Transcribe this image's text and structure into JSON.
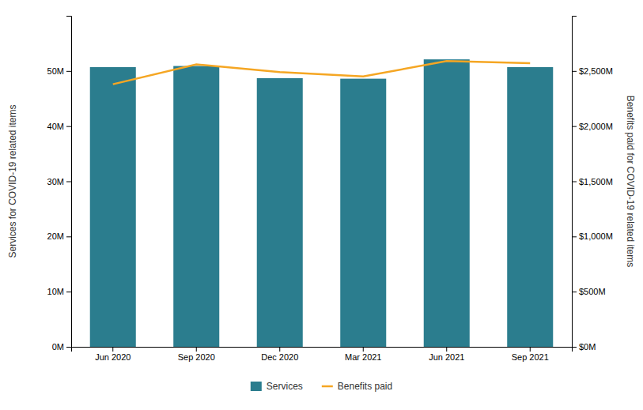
{
  "chart_data": {
    "type": "bar",
    "categories": [
      "Jun 2020",
      "Sep 2020",
      "Dec 2020",
      "Mar 2021",
      "Jun 2021",
      "Sep 2021"
    ],
    "series": [
      {
        "name": "Services",
        "type": "bar",
        "color": "#2B7D8E",
        "values": [
          50700000,
          50900000,
          48700000,
          48600000,
          52100000,
          50700000
        ]
      },
      {
        "name": "Benefits paid",
        "type": "line",
        "axis": "y2",
        "color": "#F5A623",
        "values": [
          2380000000,
          2560000000,
          2490000000,
          2450000000,
          2590000000,
          2570000000
        ]
      }
    ],
    "ylabel": "Services for COVID-19 related items",
    "y2label": "Benefits paid for COVID-19 related items",
    "ylim": [
      0,
      60000000
    ],
    "yticks": [
      {
        "value": 0,
        "label": "0M"
      },
      {
        "value": 10000000,
        "label": "10M"
      },
      {
        "value": 20000000,
        "label": "20M"
      },
      {
        "value": 30000000,
        "label": "30M"
      },
      {
        "value": 40000000,
        "label": "40M"
      },
      {
        "value": 50000000,
        "label": "50M"
      }
    ],
    "y2lim": [
      0,
      3000000000
    ],
    "y2ticks": [
      {
        "value": 0,
        "label": "$0M"
      },
      {
        "value": 500000000,
        "label": "$500M"
      },
      {
        "value": 1000000000,
        "label": "$1,000M"
      },
      {
        "value": 1500000000,
        "label": "$1,500M"
      },
      {
        "value": 2000000000,
        "label": "$2,000M"
      },
      {
        "value": 2500000000,
        "label": "$2,500M"
      }
    ],
    "grid": false,
    "legend": "bottom"
  }
}
